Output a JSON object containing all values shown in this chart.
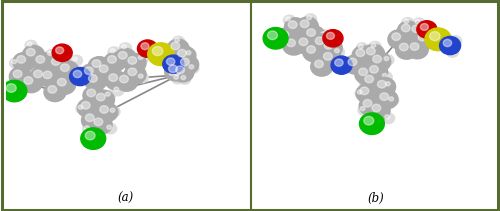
{
  "fig_width": 5.0,
  "fig_height": 2.11,
  "dpi": 100,
  "background_color": "#ffffff",
  "border_color": "#556B2F",
  "border_linewidth": 2.2,
  "divider_color": "#556B2F",
  "divider_linewidth": 1.5,
  "label_a": "(a)",
  "label_b": "(b)",
  "label_fontsize": 8.5,
  "label_fontfamily": "DejaVu Serif",
  "label_fontstyle": "italic",
  "carbon_color": "#AAAAAA",
  "hydrogen_color": "#DDDDDD",
  "oxygen_color": "#CC0000",
  "nitrogen_color": "#2244CC",
  "sulfur_color": "#CCCC00",
  "chlorine_color": "#00BB00",
  "bond_color": "#888888",
  "panel_split": 0.502
}
